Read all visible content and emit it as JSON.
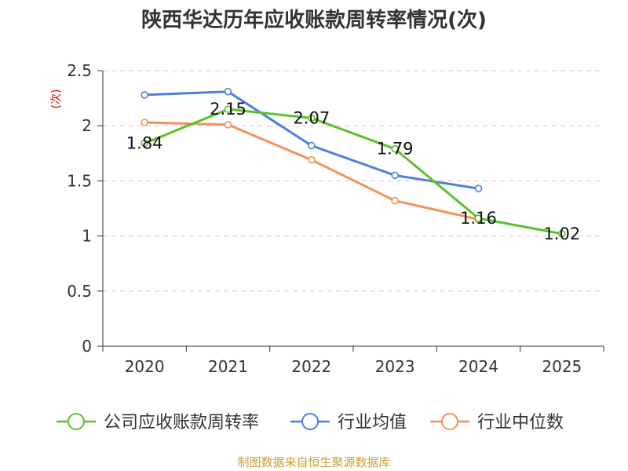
{
  "chart_data": {
    "type": "line",
    "title": "陕西华达历年应收账款周转率情况(次)",
    "ylabel": "(次)",
    "xlabel": "",
    "categories": [
      "2020",
      "2021",
      "2022",
      "2023",
      "2024",
      "2025"
    ],
    "ylim": [
      0,
      2.5
    ],
    "yticks": [
      "0",
      "0.5",
      "1",
      "1.5",
      "2",
      "2.5"
    ],
    "grid": true,
    "legend_position": "bottom",
    "series": [
      {
        "name": "公司应收账款周转率",
        "color": "#5ac229",
        "values": [
          1.84,
          2.15,
          2.07,
          1.79,
          1.16,
          1.02
        ],
        "labels": [
          "1.84",
          "2.15",
          "2.07",
          "1.79",
          "1.16",
          "1.02"
        ]
      },
      {
        "name": "行业均值",
        "color": "#4f7fdc",
        "values": [
          2.28,
          2.31,
          1.82,
          1.55,
          1.43,
          null
        ]
      },
      {
        "name": "行业中位数",
        "color": "#f5905a",
        "values": [
          2.03,
          2.01,
          1.69,
          1.32,
          1.15,
          null
        ]
      }
    ]
  },
  "footer": {
    "source": "制图数据来自恒生聚源数据库"
  }
}
